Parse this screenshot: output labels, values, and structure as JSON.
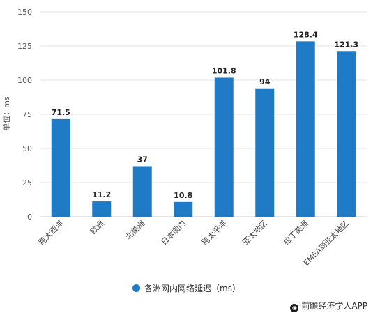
{
  "chart_data": {
    "type": "bar",
    "categories": [
      "跨大西洋",
      "欧洲",
      "北美洲",
      "日本国内",
      "跨太平洋",
      "亚太地区",
      "拉丁美洲",
      "EMEA到亚太地区"
    ],
    "series": [
      {
        "name": "各洲网内网络延迟（ms）",
        "values": [
          71.5,
          11.2,
          37,
          10.8,
          101.8,
          94,
          128.4,
          121.3
        ]
      }
    ],
    "data_labels": [
      "71.5",
      "11.2",
      "37",
      "10.8",
      "101.8",
      "94",
      "128.4",
      "121.3"
    ],
    "ylabel": "单位：ms",
    "yticks": [
      "0",
      "25",
      "50",
      "75",
      "100",
      "125",
      "150"
    ],
    "ylim": [
      0,
      150
    ],
    "grid": true,
    "legend": "bottom",
    "colors": {
      "bar": "#1f7bc6",
      "grid": "#e3e3e3"
    }
  },
  "credit": {
    "text": "前瞻经济学人APP",
    "icon": "logo-icon"
  }
}
